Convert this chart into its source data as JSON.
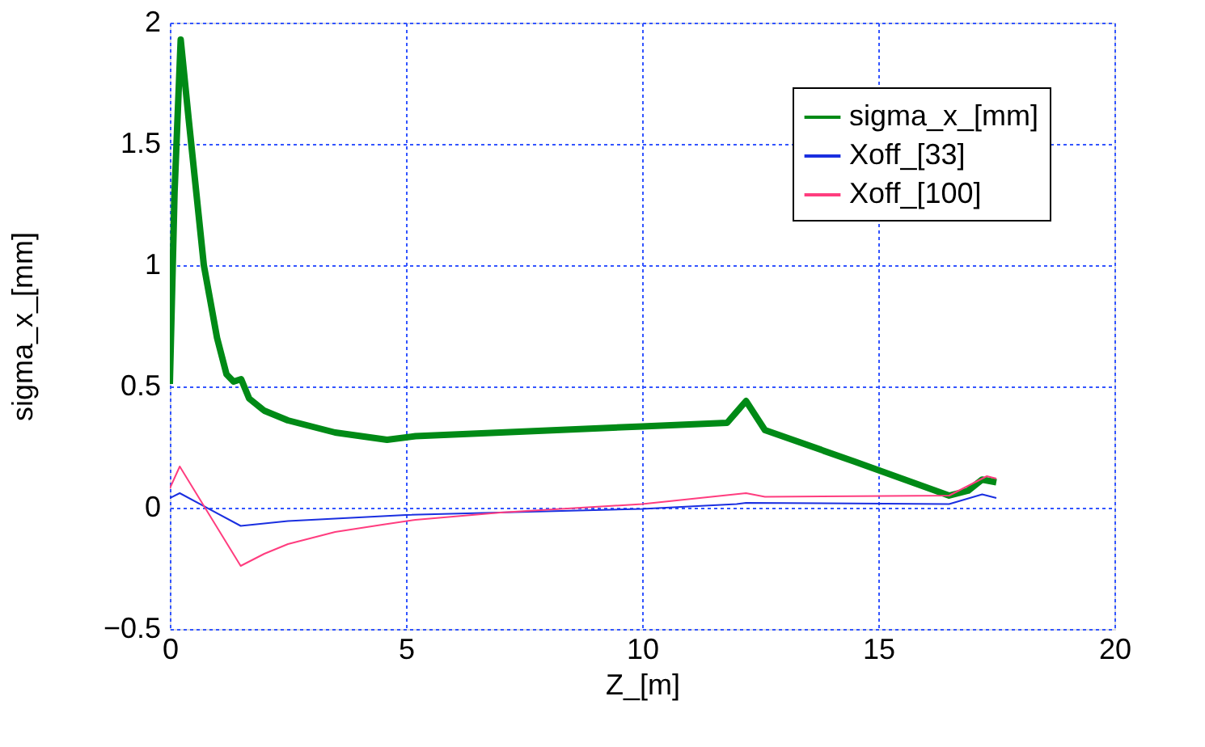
{
  "chart_data": {
    "type": "line",
    "xlabel": "Z_[m]",
    "ylabel": "sigma_x_[mm]",
    "xlim": [
      0,
      20
    ],
    "ylim": [
      -0.5,
      2
    ],
    "xticks": [
      0,
      5,
      10,
      15,
      20
    ],
    "yticks": [
      -0.5,
      0,
      0.5,
      1,
      1.5,
      2
    ],
    "grid": true,
    "legend": "top right",
    "line_style": "solid",
    "marker": "none",
    "series": [
      {
        "name": "sigma_x_[mm]",
        "color": "#008a16",
        "x": [
          0,
          0.1,
          0.23,
          0.4,
          0.72,
          1.0,
          1.2,
          1.35,
          1.51,
          1.68,
          2.0,
          2.5,
          3.5,
          4.6,
          5.2,
          7,
          10,
          11.8,
          12.2,
          12.6,
          14.5,
          16.5,
          16.9,
          17.2,
          17.5
        ],
        "values": [
          0.51,
          1.3,
          1.93,
          1.6,
          1.0,
          0.7,
          0.55,
          0.52,
          0.53,
          0.45,
          0.4,
          0.36,
          0.31,
          0.28,
          0.295,
          0.31,
          0.335,
          0.35,
          0.44,
          0.32,
          0.19,
          0.05,
          0.07,
          0.116,
          0.105
        ]
      },
      {
        "name": "Xoff_[33]",
        "color": "#1a2fe0",
        "x": [
          0,
          0.21,
          1.5,
          2.5,
          5,
          10,
          12,
          12.2,
          16.5,
          17.2,
          17.5
        ],
        "values": [
          0.04,
          0.06,
          -0.075,
          -0.055,
          -0.03,
          -0.005,
          0.015,
          0.02,
          0.015,
          0.055,
          0.04
        ]
      },
      {
        "name": "Xoff_[100]",
        "color": "#ff3d7f",
        "x": [
          0,
          0.21,
          1.5,
          2.0,
          2.5,
          3.5,
          4.5,
          5.2,
          7,
          10,
          12.2,
          12.6,
          16.5,
          17.3,
          17.5
        ],
        "values": [
          0.08,
          0.17,
          -0.24,
          -0.19,
          -0.15,
          -0.1,
          -0.07,
          -0.05,
          -0.02,
          0.015,
          0.06,
          0.045,
          0.05,
          0.13,
          0.12
        ]
      }
    ]
  }
}
